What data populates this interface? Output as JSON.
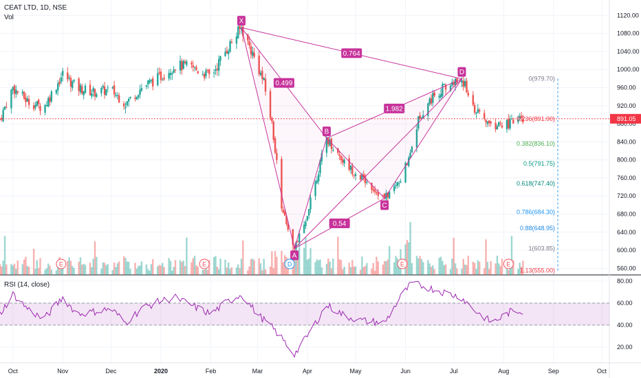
{
  "header": {
    "title": "CEAT LTD, 1D, NSE",
    "vol_label": "Vol",
    "rsi_label": "RSI (14, close)"
  },
  "price_axis": {
    "ticks": [
      "1120.00",
      "1080.00",
      "1040.00",
      "1000.00",
      "960.00",
      "920.00",
      "880.00",
      "840.00",
      "800.00",
      "760.00",
      "720.00",
      "680.00",
      "640.00",
      "600.00",
      "560.00"
    ],
    "last_price": "891.05"
  },
  "rsi_axis": {
    "ticks": [
      "80.00",
      "60.00",
      "40.00",
      "20.00"
    ]
  },
  "time_axis": {
    "labels": [
      "Oct",
      "Nov",
      "Dec",
      "2020",
      "Feb",
      "Mar",
      "Apr",
      "May",
      "Jun",
      "Jul",
      "Aug",
      "Sep",
      "Oct"
    ]
  },
  "pattern": {
    "points": [
      {
        "label": "X",
        "date": "2020-02-20",
        "price": 1093
      },
      {
        "label": "A",
        "date": "2020-03-24",
        "price": 604
      },
      {
        "label": "B",
        "date": "2020-04-13",
        "price": 848
      },
      {
        "label": "C",
        "date": "2020-05-19",
        "price": 715
      },
      {
        "label": "D",
        "date": "2020-07-06",
        "price": 979.7
      }
    ],
    "ratios": [
      {
        "value": "0.499",
        "from": "X",
        "to": "B",
        "via": "A"
      },
      {
        "value": "0.764",
        "from": "X",
        "to": "D",
        "via": "A"
      },
      {
        "value": "0.54",
        "from": "A",
        "to": "C",
        "via": "B"
      },
      {
        "value": "1.982",
        "from": "B",
        "to": "D",
        "via": "C"
      }
    ],
    "color": "#c7339b"
  },
  "fib_levels": [
    {
      "label": "0(979.70)",
      "price": 979.7,
      "color": "#787b86"
    },
    {
      "label": "0.236(891.00)",
      "price": 891.0,
      "color": "#f23645"
    },
    {
      "label": "0.382(836.10)",
      "price": 836.1,
      "color": "#4caf50"
    },
    {
      "label": "0.5(791.75)",
      "price": 791.75,
      "color": "#089981"
    },
    {
      "label": "0.618(747.40)",
      "price": 747.4,
      "color": "#00897b"
    },
    {
      "label": "0.786(684.30)",
      "price": 684.3,
      "color": "#2196f3"
    },
    {
      "label": "0.88(648.95)",
      "price": 648.95,
      "color": "#1e88e5"
    },
    {
      "label": "1(603.85)",
      "price": 603.85,
      "color": "#787b86"
    },
    {
      "label": "1.13(555.00)",
      "price": 555.0,
      "color": "#f23645"
    }
  ],
  "earnings_markers": [
    {
      "label": "E",
      "date": "2019-10-31"
    },
    {
      "label": "E",
      "date": "2020-01-28"
    },
    {
      "label": "E",
      "date": "2020-05-30"
    },
    {
      "label": "E",
      "date": "2020-08-04"
    }
  ],
  "dividend_marker": {
    "label": "D",
    "date": "2020-03-21"
  },
  "colors": {
    "up": "#26a69a",
    "down": "#ef5350",
    "rsi_line": "#9c27b0",
    "rsi_band": "rgba(156,39,176,0.12)",
    "last_price_bg": "#f23645",
    "grid": "#f0f3fa"
  },
  "chart_data": {
    "type": "line",
    "title": "CEAT LTD, 1D, NSE",
    "price_ylim": [
      550,
      1140
    ],
    "rsi_ylim": [
      10,
      85
    ],
    "price_series": {
      "name": "CEAT LTD",
      "x": [
        "2019-09-23",
        "2019-10-01",
        "2019-10-10",
        "2019-10-20",
        "2019-11-01",
        "2019-11-10",
        "2019-11-20",
        "2019-12-01",
        "2019-12-10",
        "2019-12-20",
        "2020-01-01",
        "2020-01-10",
        "2020-01-20",
        "2020-02-01",
        "2020-02-10",
        "2020-02-20",
        "2020-03-01",
        "2020-03-05",
        "2020-03-10",
        "2020-03-16",
        "2020-03-24",
        "2020-04-01",
        "2020-04-13",
        "2020-04-25",
        "2020-05-05",
        "2020-05-19",
        "2020-05-30",
        "2020-06-10",
        "2020-06-20",
        "2020-07-06",
        "2020-07-15",
        "2020-07-25",
        "2020-08-05",
        "2020-08-13"
      ],
      "y": [
        890,
        960,
        930,
        915,
        990,
        960,
        950,
        955,
        925,
        960,
        985,
        1010,
        1005,
        985,
        1040,
        1093,
        1010,
        970,
        880,
        700,
        604,
        680,
        848,
        790,
        760,
        715,
        760,
        900,
        950,
        979.7,
        905,
        875,
        880,
        891
      ]
    },
    "rsi_series": {
      "name": "RSI",
      "x": [
        "2019-09-23",
        "2019-10-01",
        "2019-10-10",
        "2019-10-20",
        "2019-11-01",
        "2019-11-10",
        "2019-11-20",
        "2019-12-01",
        "2019-12-10",
        "2019-12-20",
        "2020-01-01",
        "2020-01-10",
        "2020-01-20",
        "2020-02-01",
        "2020-02-10",
        "2020-02-20",
        "2020-03-01",
        "2020-03-10",
        "2020-03-16",
        "2020-03-24",
        "2020-04-01",
        "2020-04-13",
        "2020-04-25",
        "2020-05-05",
        "2020-05-19",
        "2020-05-30",
        "2020-06-05",
        "2020-06-20",
        "2020-07-06",
        "2020-07-15",
        "2020-07-25",
        "2020-08-05",
        "2020-08-13"
      ],
      "y": [
        50,
        68,
        55,
        45,
        65,
        50,
        52,
        55,
        42,
        55,
        62,
        65,
        58,
        50,
        60,
        68,
        50,
        38,
        28,
        13,
        30,
        58,
        48,
        44,
        42,
        68,
        78,
        72,
        65,
        52,
        42,
        52,
        53
      ]
    },
    "rsi_bands": [
      40,
      60
    ]
  }
}
